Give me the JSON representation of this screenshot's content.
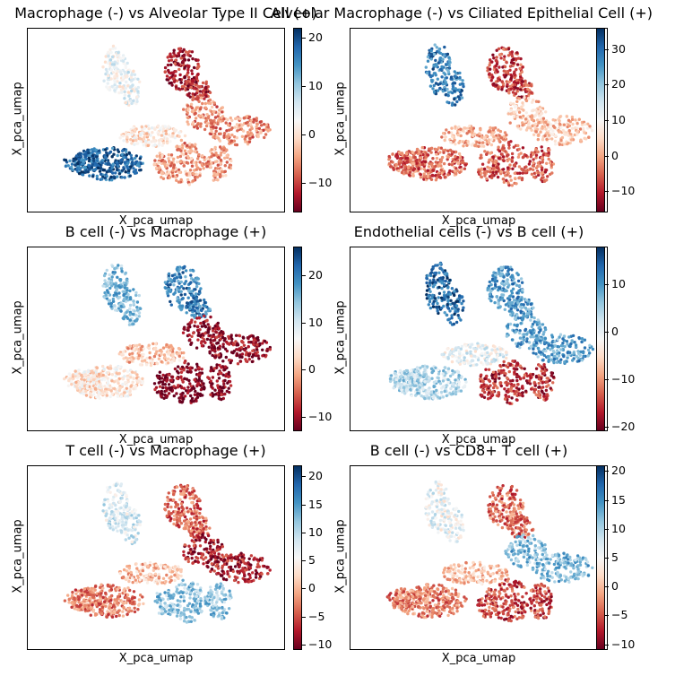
{
  "chart_data": [
    {
      "type": "scatter",
      "title": "Macrophage (-) vs Alveolar Type II Cell (+)",
      "xlabel": "X_pca_umap",
      "ylabel": "X_pca_umap",
      "colorbar": {
        "ticks": [
          "20",
          "10",
          "0",
          "−10"
        ],
        "range": [
          -16,
          22
        ],
        "colormap": "RdBu"
      },
      "pattern": {
        "upper_right_lobe": -12,
        "left_lobe": 18,
        "top_center": 4,
        "right_lobes": -6,
        "bottom_lobes": -5
      }
    },
    {
      "type": "scatter",
      "title": "Alveolar Macrophage (-) vs Ciliated Epithelial Cell (+)",
      "xlabel": "X_pca_umap",
      "ylabel": "X_pca_umap",
      "colorbar": {
        "ticks": [
          "30",
          "20",
          "10",
          "0",
          "−10"
        ],
        "range": [
          -16,
          36
        ],
        "colormap": "RdBu"
      },
      "pattern": {
        "upper_right_lobe": -8,
        "left_lobe": -5,
        "top_center": 28,
        "right_lobes": 3,
        "bottom_lobes": -6
      }
    },
    {
      "type": "scatter",
      "title": "B cell (-) vs Macrophage (+)",
      "xlabel": "X_pca_umap",
      "ylabel": "X_pca_umap",
      "colorbar": {
        "ticks": [
          "20",
          "10",
          "0",
          "−10"
        ],
        "range": [
          -13,
          26
        ],
        "colormap": "RdBu"
      },
      "pattern": {
        "upper_right_lobe": 20,
        "left_lobe": 4,
        "top_center": 15,
        "right_lobes": -11,
        "bottom_lobes": -12
      }
    },
    {
      "type": "scatter",
      "title": "Endothelial cells (-) vs B cell (+)",
      "xlabel": "X_pca_umap",
      "ylabel": "X_pca_umap",
      "colorbar": {
        "ticks": [
          "10",
          "0",
          "−10",
          "−20"
        ],
        "range": [
          -21,
          18
        ],
        "colormap": "RdBu"
      },
      "pattern": {
        "upper_right_lobe": 10,
        "left_lobe": 4,
        "top_center": 14,
        "right_lobes": 9,
        "bottom_lobes": -16
      }
    },
    {
      "type": "scatter",
      "title": "T cell (-) vs Macrophage (+)",
      "xlabel": "X_pca_umap",
      "ylabel": "X_pca_umap",
      "colorbar": {
        "ticks": [
          "20",
          "15",
          "10",
          "5",
          "0",
          "−5",
          "−10"
        ],
        "range": [
          -11,
          22
        ],
        "colormap": "RdBu"
      },
      "pattern": {
        "upper_right_lobe": -4,
        "left_lobe": -3,
        "top_center": 8,
        "right_lobes": -8,
        "bottom_lobes": 12
      }
    },
    {
      "type": "scatter",
      "title": "B cell (-) vs CD8+ T cell (+)",
      "xlabel": "X_pca_umap",
      "ylabel": "X_pca_umap",
      "colorbar": {
        "ticks": [
          "20",
          "15",
          "10",
          "5",
          "0",
          "−5",
          "−10"
        ],
        "range": [
          -11,
          21
        ],
        "colormap": "RdBu"
      },
      "pattern": {
        "upper_right_lobe": -4,
        "left_lobe": -3,
        "top_center": 6,
        "right_lobes": 12,
        "bottom_lobes": -6
      }
    }
  ]
}
